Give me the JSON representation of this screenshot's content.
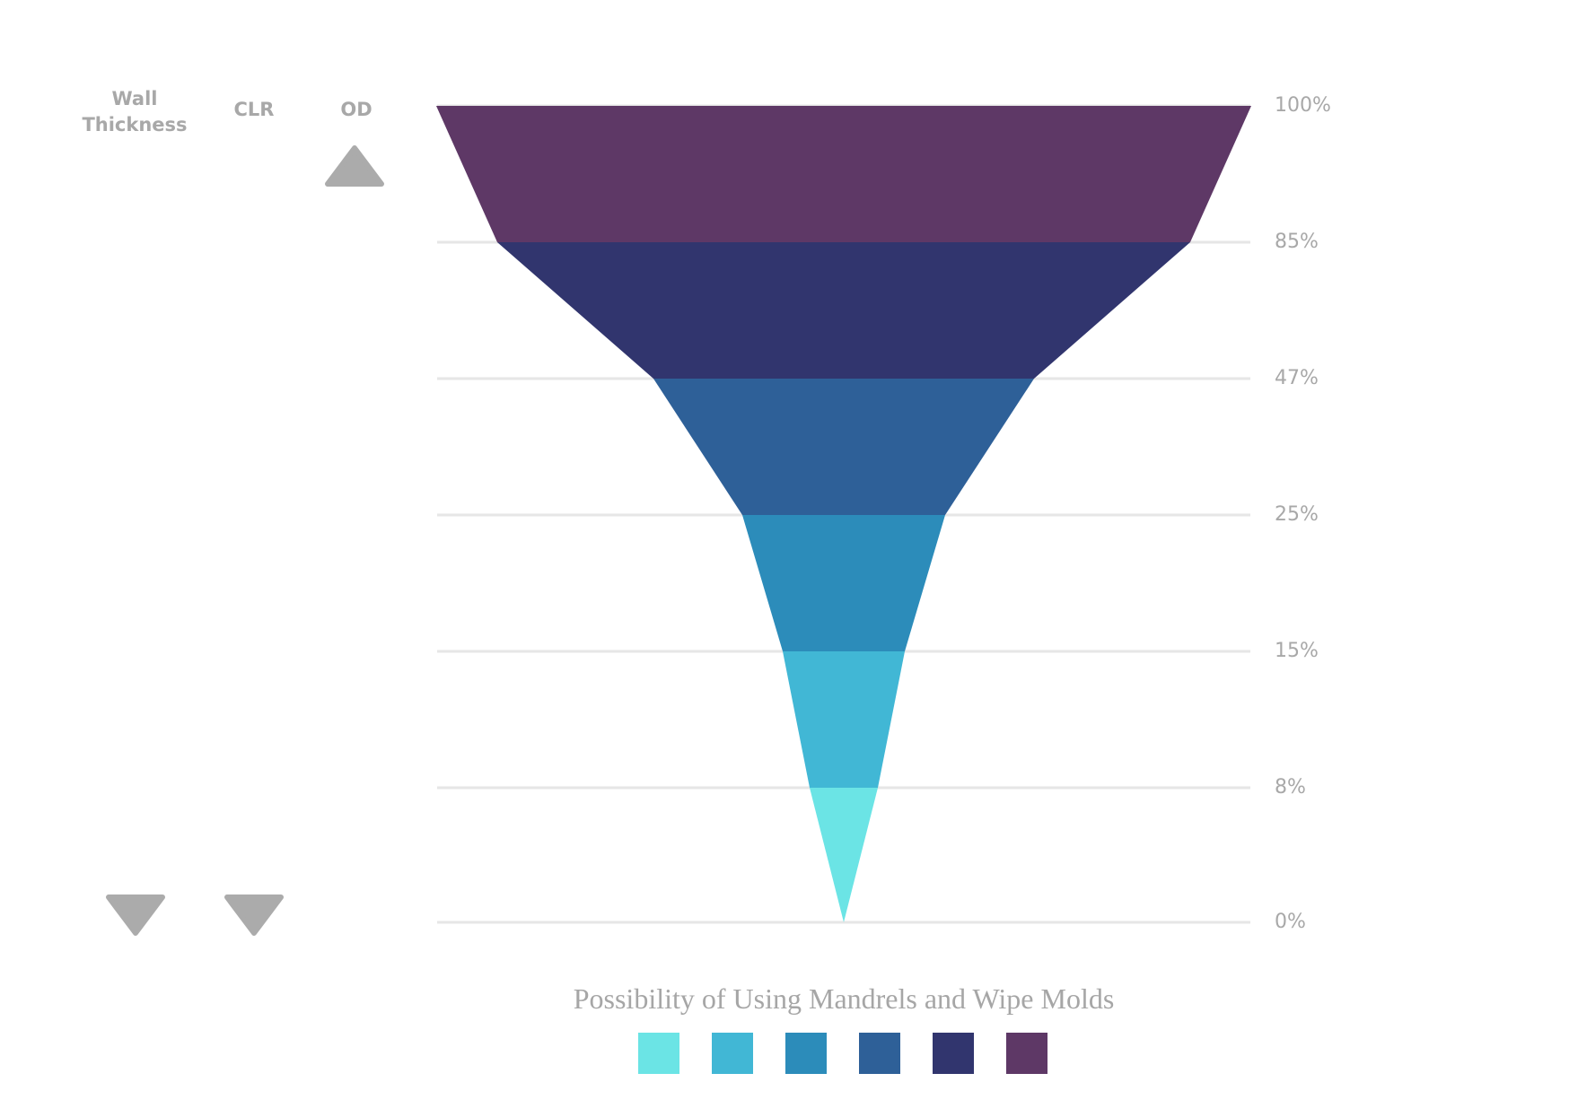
{
  "chart_data": {
    "type": "funnel",
    "title": "Possibility of Using Mandrels and Wipe Molds",
    "y_tick_labels": [
      "100%",
      "85%",
      "47%",
      "25%",
      "15%",
      "8%",
      "0%"
    ],
    "y_ticks": [
      100,
      85,
      47,
      25,
      15,
      8,
      0
    ],
    "grid": true,
    "legend_position": "bottom",
    "segments": [
      {
        "from": 85,
        "to": 100,
        "color": "#5E3866"
      },
      {
        "from": 47,
        "to": 85,
        "color": "#31356E"
      },
      {
        "from": 25,
        "to": 47,
        "color": "#2E6098"
      },
      {
        "from": 15,
        "to": 25,
        "color": "#2C8CBA"
      },
      {
        "from": 8,
        "to": 15,
        "color": "#41B7D5"
      },
      {
        "from": 0,
        "to": 8,
        "color": "#6BE4E5"
      }
    ],
    "legend_colors": [
      "#6BE4E5",
      "#41B7D5",
      "#2C8CBA",
      "#2E6098",
      "#31356E",
      "#5E3866"
    ],
    "side_arrows": [
      {
        "label": "Wall\nThickness",
        "direction": "down"
      },
      {
        "label": "CLR",
        "direction": "down"
      },
      {
        "label": "OD",
        "direction": "up"
      }
    ]
  },
  "colors": {
    "arrow": "#ababab",
    "grid": "#e6e6e6",
    "text": "#a8a8a8"
  }
}
